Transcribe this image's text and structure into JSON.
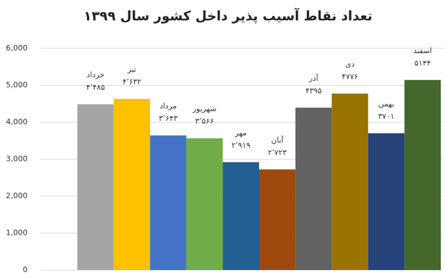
{
  "chart_data": {
    "type": "bar",
    "title": "تعداد نقاط آسیب پذیر داخل کشور سال ۱۳۹۹",
    "categories": [
      "خرداد",
      "تیر",
      "مرداد",
      "شهریور",
      "مهر",
      "آبان",
      "آذر",
      "دی",
      "بهمن",
      "اسفند"
    ],
    "values": [
      4485,
      4632,
      3643,
      3566,
      2919,
      2723,
      4395,
      4776,
      3701,
      5144
    ],
    "value_labels": [
      "۴٬۴۸۵",
      "۴٬۶۳۲",
      "۳٬۶۴۳",
      "۳٬۵۶۶",
      "۲٬۹۱۹",
      "۲٬۷۲۳",
      "۴۳۹۵",
      "۴۷۷۶",
      "۳۷۰۱",
      "۵۱۴۴"
    ],
    "colors": [
      "#a5a5a5",
      "#ffc000",
      "#4472c4",
      "#70ad47",
      "#255e91",
      "#9e480e",
      "#636363",
      "#997300",
      "#264478",
      "#43682b"
    ],
    "ylim": [
      0,
      6000
    ],
    "yticks": [
      0,
      {
        "value": 1000,
        "label": "1,000"
      },
      {
        "value": 2000,
        "label": "2,000"
      },
      {
        "value": 3000,
        "label": "3,000"
      },
      {
        "value": 4000,
        "label": "4,000"
      },
      {
        "value": 5000,
        "label": "5,000"
      },
      {
        "value": 6000,
        "label": "6,000"
      }
    ],
    "grid": true
  }
}
